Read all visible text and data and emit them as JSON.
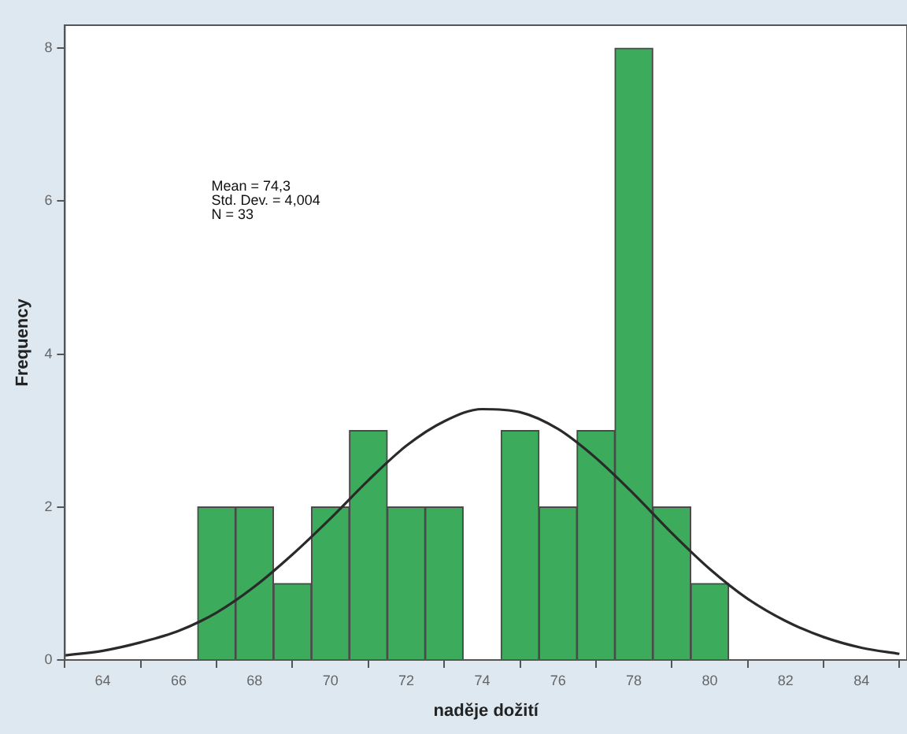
{
  "chart_data": {
    "type": "histogram",
    "xlabel": "naděje dožití",
    "ylabel": "Frequency",
    "bins": [
      66.5,
      67.5,
      68.5,
      69.5,
      70.5,
      71.5,
      72.5,
      73.5,
      74.5,
      75.5,
      76.5,
      77.5,
      78.5,
      79.5,
      80.5
    ],
    "values": [
      2,
      2,
      1,
      2,
      3,
      2,
      2,
      0,
      3,
      2,
      3,
      8,
      2,
      1
    ],
    "color": "#3cab5c",
    "series": [
      {
        "type": "line",
        "color": "#2a2a2a",
        "x": [
          63,
          64,
          65,
          66,
          67,
          68,
          69,
          70,
          71,
          72,
          73,
          74,
          75,
          76,
          77,
          78,
          79,
          80,
          81,
          82,
          83,
          84,
          85
        ],
        "values": [
          0.06,
          0.12,
          0.23,
          0.38,
          0.62,
          0.96,
          1.38,
          1.85,
          2.35,
          2.8,
          3.12,
          3.28,
          3.24,
          3.02,
          2.64,
          2.17,
          1.66,
          1.19,
          0.8,
          0.51,
          0.3,
          0.16,
          0.08
        ]
      }
    ],
    "xlim": [
      63,
      85.2
    ],
    "xticks": [
      64,
      66,
      68,
      70,
      72,
      74,
      76,
      78,
      80,
      82,
      84
    ],
    "ylim": [
      0,
      8.3
    ],
    "yticks": [
      0,
      2,
      4,
      6,
      8
    ],
    "grid": false,
    "legend": false,
    "marker": "none",
    "annotations": [
      "Mean = 74,3",
      "Std. Dev. = 4,004",
      "N = 33"
    ]
  }
}
